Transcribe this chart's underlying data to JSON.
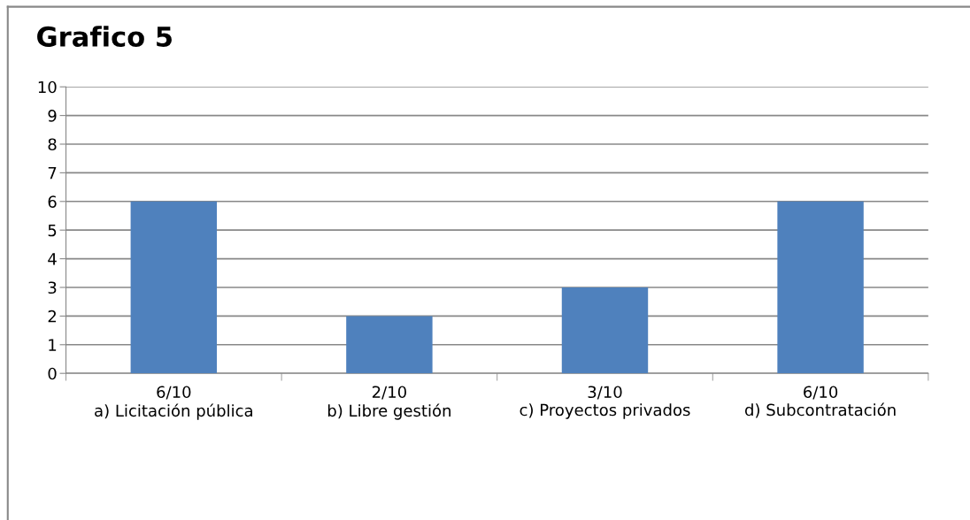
{
  "chart_data": {
    "type": "bar",
    "title": "Grafico 5",
    "categories": [
      "6/10\na) Licitación pública",
      "2/10\nb) Libre gestión",
      "3/10\nc) Proyectos privados",
      "6/10\nd) Subcontratación"
    ],
    "values": [
      6,
      2,
      3,
      6
    ],
    "color": "#4f81bd",
    "ylim": [
      0,
      10
    ],
    "yticks": [
      0,
      1,
      2,
      3,
      4,
      5,
      6,
      7,
      8,
      9,
      10
    ],
    "grid": "y",
    "legend": false
  }
}
